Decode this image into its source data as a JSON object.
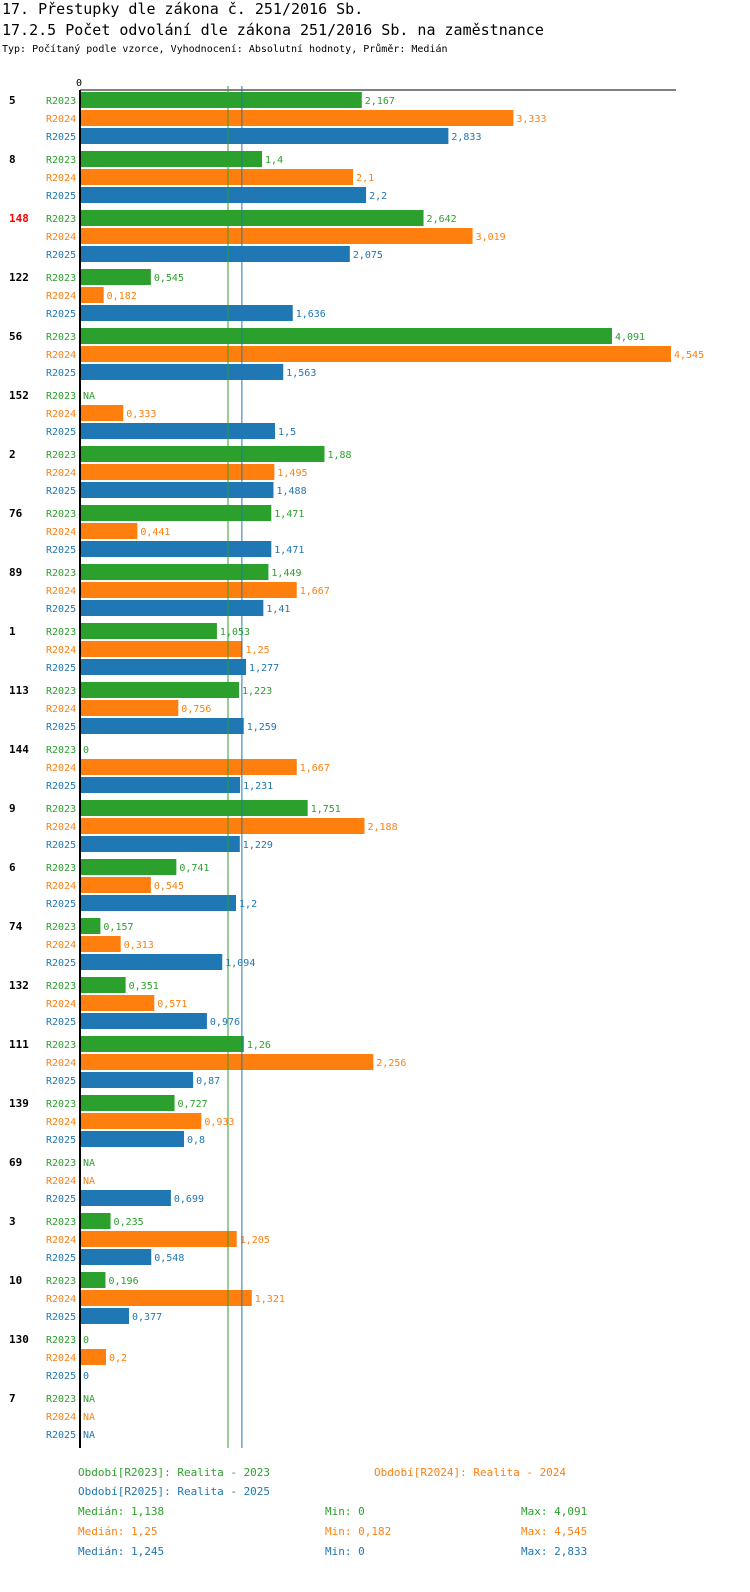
{
  "header": {
    "title1": "17. Přestupky dle zákona č. 251/2016 Sb.",
    "title2": "17.2.5 Počet odvolání dle zákona 251/2016 Sb. na zaměstnance",
    "subtitle": "Typ: Počítaný podle vzorce, Vyhodnocení: Absolutní hodnoty, Průměr: Medián"
  },
  "chart_data": {
    "type": "bar",
    "orientation": "horizontal",
    "axis_zero_label": "0",
    "xlim": [
      0,
      4.545
    ],
    "series": [
      {
        "name": "R2023",
        "color": "#2ca02c"
      },
      {
        "name": "R2024",
        "color": "#ff7f0e"
      },
      {
        "name": "R2025",
        "color": "#1f77b4"
      }
    ],
    "groups": [
      {
        "id": "5",
        "highlight": false,
        "values": [
          2.167,
          3.333,
          2.833
        ],
        "labels": [
          "2,167",
          "3,333",
          "2,833"
        ]
      },
      {
        "id": "8",
        "highlight": false,
        "values": [
          1.4,
          2.1,
          2.2
        ],
        "labels": [
          "1,4",
          "2,1",
          "2,2"
        ]
      },
      {
        "id": "148",
        "highlight": true,
        "values": [
          2.642,
          3.019,
          2.075
        ],
        "labels": [
          "2,642",
          "3,019",
          "2,075"
        ]
      },
      {
        "id": "122",
        "highlight": false,
        "values": [
          0.545,
          0.182,
          1.636
        ],
        "labels": [
          "0,545",
          "0,182",
          "1,636"
        ]
      },
      {
        "id": "56",
        "highlight": false,
        "values": [
          4.091,
          4.545,
          1.563
        ],
        "labels": [
          "4,091",
          "4,545",
          "1,563"
        ]
      },
      {
        "id": "152",
        "highlight": false,
        "values": [
          null,
          0.333,
          1.5
        ],
        "labels": [
          "NA",
          "0,333",
          "1,5"
        ]
      },
      {
        "id": "2",
        "highlight": false,
        "values": [
          1.88,
          1.495,
          1.488
        ],
        "labels": [
          "1,88",
          "1,495",
          "1,488"
        ]
      },
      {
        "id": "76",
        "highlight": false,
        "values": [
          1.471,
          0.441,
          1.471
        ],
        "labels": [
          "1,471",
          "0,441",
          "1,471"
        ]
      },
      {
        "id": "89",
        "highlight": false,
        "values": [
          1.449,
          1.667,
          1.41
        ],
        "labels": [
          "1,449",
          "1,667",
          "1,41"
        ]
      },
      {
        "id": "1",
        "highlight": false,
        "values": [
          1.053,
          1.25,
          1.277
        ],
        "labels": [
          "1,053",
          "1,25",
          "1,277"
        ]
      },
      {
        "id": "113",
        "highlight": false,
        "values": [
          1.223,
          0.756,
          1.259
        ],
        "labels": [
          "1,223",
          "0,756",
          "1,259"
        ]
      },
      {
        "id": "144",
        "highlight": false,
        "values": [
          0,
          1.667,
          1.231
        ],
        "labels": [
          "0",
          "1,667",
          "1,231"
        ]
      },
      {
        "id": "9",
        "highlight": false,
        "values": [
          1.751,
          2.188,
          1.229
        ],
        "labels": [
          "1,751",
          "2,188",
          "1,229"
        ]
      },
      {
        "id": "6",
        "highlight": false,
        "values": [
          0.741,
          0.545,
          1.2
        ],
        "labels": [
          "0,741",
          "0,545",
          "1,2"
        ]
      },
      {
        "id": "74",
        "highlight": false,
        "values": [
          0.157,
          0.313,
          1.094
        ],
        "labels": [
          "0,157",
          "0,313",
          "1,094"
        ]
      },
      {
        "id": "132",
        "highlight": false,
        "values": [
          0.351,
          0.571,
          0.976
        ],
        "labels": [
          "0,351",
          "0,571",
          "0,976"
        ]
      },
      {
        "id": "111",
        "highlight": false,
        "values": [
          1.26,
          2.256,
          0.87
        ],
        "labels": [
          "1,26",
          "2,256",
          "0,87"
        ]
      },
      {
        "id": "139",
        "highlight": false,
        "values": [
          0.727,
          0.933,
          0.8
        ],
        "labels": [
          "0,727",
          "0,933",
          "0,8"
        ]
      },
      {
        "id": "69",
        "highlight": false,
        "values": [
          null,
          null,
          0.699
        ],
        "labels": [
          "NA",
          "NA",
          "0,699"
        ]
      },
      {
        "id": "3",
        "highlight": false,
        "values": [
          0.235,
          1.205,
          0.548
        ],
        "labels": [
          "0,235",
          "1,205",
          "0,548"
        ]
      },
      {
        "id": "10",
        "highlight": false,
        "values": [
          0.196,
          1.321,
          0.377
        ],
        "labels": [
          "0,196",
          "1,321",
          "0,377"
        ]
      },
      {
        "id": "130",
        "highlight": false,
        "values": [
          0,
          0.2,
          0
        ],
        "labels": [
          "0",
          "0,2",
          "0"
        ]
      },
      {
        "id": "7",
        "highlight": false,
        "values": [
          null,
          null,
          null
        ],
        "labels": [
          "NA",
          "NA",
          "NA"
        ]
      }
    ],
    "median_lines": [
      {
        "series": "R2023",
        "value": 1.138
      },
      {
        "series": "R2025",
        "value": 1.245
      }
    ]
  },
  "legend": {
    "r2023": "Období[R2023]: Realita - 2023",
    "r2024": "Období[R2024]: Realita - 2024",
    "r2025": "Období[R2025]: Realita - 2025"
  },
  "stats": {
    "r2023": {
      "median": "Medián: 1,138",
      "min": "Min: 0",
      "max": "Max: 4,091"
    },
    "r2024": {
      "median": "Medián: 1,25",
      "min": "Min: 0,182",
      "max": "Max: 4,545"
    },
    "r2025": {
      "median": "Medián: 1,245",
      "min": "Min: 0",
      "max": "Max: 2,833"
    }
  },
  "colors": {
    "r2023": "#2ca02c",
    "r2024": "#ff7f0e",
    "r2025": "#1f77b4",
    "highlight": "#ff0000"
  }
}
